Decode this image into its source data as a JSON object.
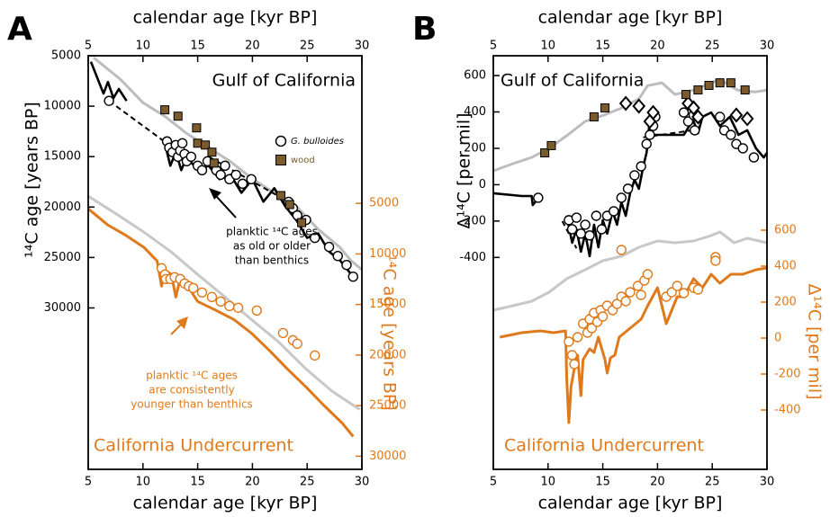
{
  "chart_data": [
    {
      "type": "line",
      "label": "A",
      "xlabel": "calendar age [kyr BP]",
      "ylabel": "¹⁴C age [years BP]",
      "y2label": "¹⁴C age [years BP]",
      "y2color": "#df7a1c",
      "xlim": [
        5,
        30
      ],
      "xticks": [
        5,
        10,
        15,
        20,
        25,
        30
      ],
      "ylim": [
        46000,
        5000
      ],
      "yticks": [
        5000,
        10000,
        15000,
        20000,
        25000,
        30000
      ],
      "y2lim": [
        31300,
        -9600
      ],
      "y2ticks": [
        5000,
        10000,
        15000,
        20000,
        25000,
        30000
      ],
      "annotations": [
        {
          "text": "Gulf of California",
          "color": "#000000"
        },
        {
          "text": "California Undercurrent",
          "color": "#df7a1c"
        },
        {
          "text": "planktic ¹⁴C ages",
          "color": "#000000"
        },
        {
          "text": "as old or older",
          "color": "#000000"
        },
        {
          "text": "than benthics",
          "color": "#000000"
        },
        {
          "text": "planktic ¹⁴C ages",
          "color": "#df7a1c"
        },
        {
          "text": "are consistently",
          "color": "#df7a1c"
        },
        {
          "text": "younger than benthics",
          "color": "#df7a1c"
        }
      ],
      "series": [
        {
          "marker": "line",
          "color": "#bdbdbd",
          "x": [
            5.5,
            8,
            10,
            12,
            14,
            16,
            18,
            20,
            22,
            24,
            26,
            28,
            29,
            30
          ],
          "values": [
            5200,
            7400,
            9650,
            11000,
            12700,
            14100,
            15500,
            17200,
            18600,
            19900,
            22200,
            24000,
            25300,
            26200
          ]
        },
        {
          "marker": "line",
          "color": "#c8c8c8",
          "axis": "y2",
          "x": [
            5,
            7.6,
            10.1,
            12.6,
            15,
            17.5,
            19.9,
            22.4,
            24.9,
            27.3,
            29.8
          ],
          "values": [
            4290,
            6070,
            7850,
            9810,
            12030,
            14260,
            16480,
            18710,
            21380,
            23600,
            25380
          ]
        },
        {
          "marker": "line",
          "color": "#df7a1c",
          "axis": "y2",
          "x": [
            5,
            6.8,
            8.5,
            10.1,
            11.3,
            11.7,
            12.0,
            12.6,
            13.0,
            13.4,
            14.2,
            15.0,
            16.7,
            18.3,
            19.9,
            21.6,
            23.2,
            24.9,
            26.5,
            28.2,
            29.2
          ],
          "values": [
            5530,
            7140,
            8200,
            9360,
            10700,
            13190,
            11590,
            12030,
            14260,
            12480,
            13370,
            14700,
            15590,
            16480,
            17820,
            19600,
            21380,
            23160,
            24940,
            26720,
            28050
          ]
        },
        {
          "marker": "line",
          "color": "#000000",
          "x": [
            5.25,
            6.4,
            6.8,
            7.3,
            7.8,
            8.5,
            null,
            12,
            12.5,
            13,
            13.5,
            14,
            15,
            16,
            17,
            18,
            19,
            20,
            21,
            22,
            23,
            24,
            25,
            26,
            27,
            28,
            29
          ],
          "values": [
            5600,
            8750,
            7600,
            9200,
            8300,
            9470,
            null,
            13670,
            15900,
            14560,
            16350,
            15010,
            16350,
            15900,
            17240,
            16800,
            18580,
            17240,
            19470,
            18130,
            19920,
            21270,
            23060,
            22610,
            24400,
            25290,
            26630
          ]
        },
        {
          "marker": "line",
          "style": "dashed",
          "color": "#000000",
          "x": [
            6.9,
            12.2,
            null,
            16.0,
            23.3
          ],
          "values": [
            9470,
            13700,
            null,
            15010,
            19480
          ]
        },
        {
          "name": "G. bulloides",
          "marker": "circle",
          "color": "#000000",
          "x": [
            6.9,
            12.2,
            12.4,
            12.7,
            13.0,
            13.2,
            13.4,
            13.6,
            13.8,
            14.0,
            14.4,
            15.0,
            15.4,
            15.9,
            16.7,
            17.1,
            17.5,
            17.9,
            18.5,
            19.1,
            19.9,
            23.3,
            23.7,
            24.1,
            24.9,
            25.7,
            27.0,
            27.8,
            28.6,
            29.2
          ],
          "values": [
            9470,
            13490,
            14120,
            14560,
            13850,
            15010,
            14390,
            13670,
            14740,
            15460,
            15010,
            15900,
            16350,
            15460,
            16350,
            16800,
            15900,
            17240,
            16800,
            17690,
            17240,
            19480,
            20110,
            20820,
            21270,
            23060,
            23950,
            24850,
            25740,
            26900
          ]
        },
        {
          "name": "wood",
          "marker": "square",
          "color": "#7b5b2c",
          "x": [
            12.0,
            13.2,
            14.9,
            15.0,
            15.7,
            16.3,
            16.5,
            22.6,
            23.4,
            24.5
          ],
          "values": [
            10360,
            10990,
            12150,
            13670,
            13850,
            14560,
            15640,
            18860,
            19750,
            21540
          ]
        },
        {
          "marker": "circle",
          "color": "#df7a1c",
          "axis": "y2",
          "x": [
            11.7,
            12.0,
            12.1,
            12.5,
            12.9,
            13.4,
            13.8,
            14.2,
            14.6,
            15.4,
            16.3,
            17.1,
            17.9,
            18.7,
            20.4,
            22.8,
            23.7,
            24.1,
            25.7
          ],
          "values": [
            11410,
            12030,
            12480,
            12480,
            12300,
            12480,
            12920,
            13190,
            13370,
            13810,
            14260,
            14700,
            15150,
            15320,
            15590,
            17820,
            18530,
            18880,
            20040
          ]
        }
      ]
    },
    {
      "type": "line",
      "label": "B",
      "xlabel": "calendar age [kyr BP]",
      "ylabel": "Δ¹⁴C [per mil]",
      "y2label": "Δ¹⁴C [per mil]",
      "y2color": "#df7a1c",
      "xlim": [
        5,
        30
      ],
      "xticks": [
        5,
        10,
        15,
        20,
        25,
        30
      ],
      "ylim": [
        -1565,
        709
      ],
      "yticks": [
        -400,
        -200,
        0,
        200,
        400,
        600
      ],
      "y2lim": [
        -730,
        1570
      ],
      "y2ticks": [
        -400,
        -200,
        0,
        200,
        400,
        600
      ],
      "annotations": [
        {
          "text": "Gulf of California",
          "color": "#000000"
        },
        {
          "text": "California Undercurrent",
          "color": "#df7a1c"
        }
      ],
      "series": [
        {
          "marker": "line",
          "color": "#bdbdbd",
          "x": [
            5,
            6.8,
            8.5,
            10.1,
            11.8,
            13.4,
            15.1,
            16.7,
            18.3,
            19.1,
            20.4,
            21.6,
            23.3,
            24.9,
            25.7,
            27.3,
            28.9,
            30
          ],
          "values": [
            76,
            116,
            150,
            200,
            274,
            348,
            382,
            422,
            471,
            545,
            560,
            496,
            520,
            560,
            580,
            520,
            510,
            520
          ]
        },
        {
          "marker": "line",
          "color": "#c8c8c8",
          "axis": "y2",
          "x": [
            5,
            6.8,
            8.5,
            10.1,
            11.7,
            13.4,
            15.0,
            16.7,
            18.3,
            20.0,
            21.6,
            23.3,
            24.9,
            25.7,
            27.0,
            28.2,
            30
          ],
          "values": [
            155,
            180,
            205,
            255,
            330,
            380,
            430,
            455,
            505,
            540,
            530,
            540,
            570,
            590,
            530,
            555,
            530
          ]
        },
        {
          "marker": "line",
          "color": "#df7a1c",
          "axis": "y2",
          "x": [
            5.6,
            7.6,
            9.3,
            10.5,
            11.6,
            11.7,
            11.9,
            12.1,
            12.4,
            12.7,
            13.0,
            13.2,
            13.8,
            14.2,
            14.6,
            15.2,
            15.4,
            15.7,
            16.1,
            16.5,
            17.5,
            18.5,
            19.1,
            20.0,
            20.8,
            21.8,
            22.4,
            23.3,
            24.1,
            24.9,
            25.7,
            26.7,
            27.8,
            29.0,
            30
          ],
          "values": [
            5,
            30,
            40,
            30,
            40,
            -220,
            -470,
            -270,
            -170,
            -95,
            -320,
            -120,
            -60,
            -80,
            5,
            -120,
            -195,
            -110,
            -95,
            5,
            55,
            105,
            180,
            280,
            80,
            230,
            230,
            330,
            280,
            355,
            305,
            355,
            355,
            380,
            390
          ]
        },
        {
          "marker": "line",
          "color": "#000000",
          "x": [
            5,
            7.6,
            8.5,
            8.6,
            9.0,
            null,
            11.7,
            12.2,
            12.6,
            13.0,
            13.4,
            13.8,
            14.2,
            14.6,
            15.0,
            15.4,
            15.9,
            16.3,
            16.7,
            17.1,
            17.5,
            17.9,
            18.3,
            18.7,
            19.0,
            19.1,
            19.3,
            19.6,
            22.4,
            22.9,
            23.3,
            23.7,
            24.1,
            24.9,
            25.7,
            26.6,
            27.4,
            28.2,
            29.0,
            29.7,
            30
          ],
          "values": [
            -47,
            -62,
            -62,
            -112,
            -82,
            null,
            -171,
            -319,
            -245,
            -368,
            -269,
            -393,
            -220,
            -344,
            -195,
            -269,
            -146,
            -220,
            -97,
            -171,
            -47,
            27,
            -22,
            101,
            175,
            224,
            373,
            274,
            274,
            323,
            348,
            284,
            373,
            397,
            323,
            373,
            274,
            299,
            200,
            150,
            175
          ]
        },
        {
          "marker": "line",
          "style": "dashed",
          "color": "#000000",
          "x": [
            11.3,
            12.6,
            null,
            18.7,
            23.3
          ],
          "values": [
            -200,
            -350,
            null,
            260,
            300
          ]
        },
        {
          "marker": "circle",
          "color": "#000000",
          "x": [
            9.1,
            11.9,
            12.2,
            12.6,
            13.0,
            13.4,
            13.8,
            14.4,
            14.9,
            15.4,
            16.0,
            16.7,
            17.3,
            17.9,
            18.5,
            19.0,
            19.3,
            19.6,
            19.8,
            22.4,
            22.8,
            23.3,
            23.4,
            25.7,
            26.1,
            26.7,
            27.2,
            27.8,
            28.8
          ],
          "values": [
            -72,
            -195,
            -245,
            -181,
            -269,
            -220,
            -279,
            -171,
            -245,
            -171,
            -146,
            -72,
            -22,
            52,
            101,
            224,
            274,
            323,
            373,
            397,
            348,
            383,
            299,
            373,
            299,
            274,
            224,
            200,
            150
          ]
        },
        {
          "marker": "diamond",
          "color": "#000000",
          "x": [
            17.1,
            18.3,
            19.3,
            19.6,
            22.8,
            23.3,
            23.7,
            27.2,
            28.2
          ],
          "values": [
            447,
            432,
            348,
            397,
            447,
            422,
            373,
            383,
            363
          ]
        },
        {
          "marker": "square",
          "color": "#7b5b2c",
          "x": [
            9.7,
            10.3,
            14.2,
            15.2,
            22.6,
            23.7,
            24.7,
            25.7,
            26.7,
            28.0
          ],
          "values": [
            175,
            215,
            373,
            422,
            496,
            521,
            546,
            560,
            560,
            521
          ]
        },
        {
          "marker": "circle",
          "color": "#df7a1c",
          "axis": "y2",
          "x": [
            11.9,
            12.2,
            12.4,
            12.7,
            13.2,
            13.6,
            13.8,
            14.0,
            14.2,
            14.5,
            14.8,
            15.0,
            15.4,
            15.9,
            16.3,
            16.7,
            17.1,
            17.5,
            18.2,
            18.5,
            18.8,
            19.1,
            20.8,
            21.3,
            21.8,
            22.4,
            23.3,
            23.7,
            25.3,
            25.3,
            16.7
          ],
          "values": [
            -20,
            -95,
            -145,
            5,
            80,
            30,
            105,
            55,
            140,
            90,
            155,
            120,
            180,
            155,
            190,
            230,
            205,
            255,
            290,
            240,
            320,
            355,
            230,
            255,
            290,
            250,
            280,
            270,
            450,
            430,
            490
          ]
        }
      ]
    }
  ]
}
